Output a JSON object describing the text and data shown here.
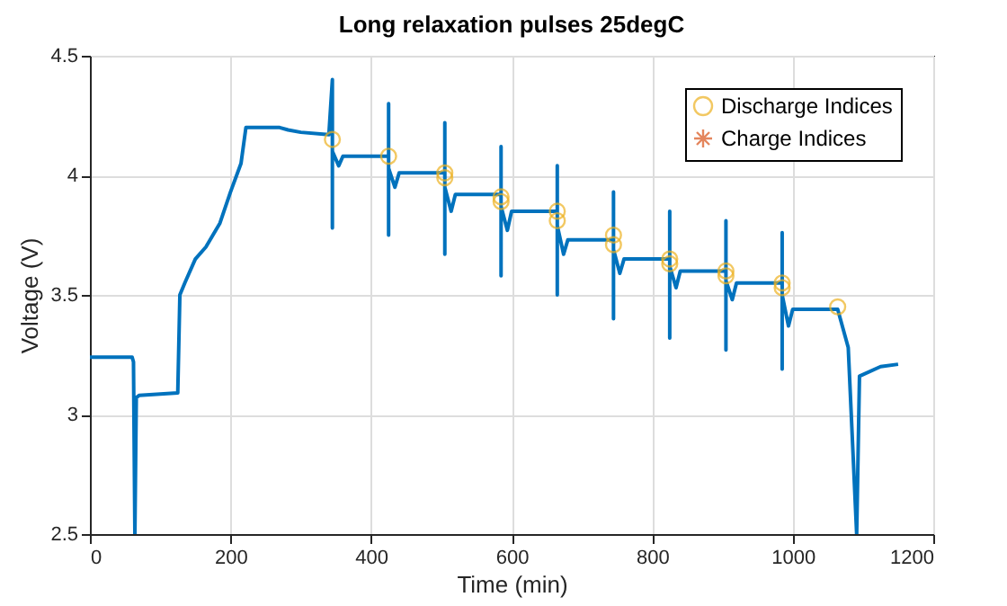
{
  "chart_data": {
    "type": "line",
    "title": "Long relaxation pulses 25degC",
    "xlabel": "Time (min)",
    "ylabel": "Voltage (V)",
    "xlim": [
      0,
      1200
    ],
    "xticks": [
      0,
      200,
      400,
      600,
      800,
      1000,
      1200
    ],
    "ylim": [
      2.5,
      4.5
    ],
    "yticks": [
      2.5,
      3,
      3.5,
      4,
      4.5
    ],
    "grid": true,
    "legend": "top right",
    "series": [
      {
        "color": "#0072bd",
        "marker": "none",
        "x": [
          0,
          60,
          62,
          64,
          66,
          70,
          125,
          128,
          135,
          150,
          165,
          185,
          200,
          215,
          222,
          270,
          282,
          300,
          340,
          345,
          345,
          345,
          354,
          360,
          425,
          425,
          425,
          425,
          434,
          440,
          505,
          505,
          505,
          505,
          514,
          520,
          585,
          585,
          585,
          585,
          594,
          600,
          665,
          665,
          665,
          665,
          674,
          680,
          745,
          745,
          745,
          745,
          754,
          760,
          825,
          825,
          825,
          825,
          834,
          840,
          905,
          905,
          905,
          905,
          914,
          920,
          985,
          985,
          985,
          985,
          994,
          1000,
          1064,
          1079,
          1091,
          1095,
          1125,
          1150
        ],
        "values": [
          3.24,
          3.24,
          3.22,
          2.5,
          3.07,
          3.08,
          3.09,
          3.5,
          3.55,
          3.65,
          3.7,
          3.8,
          3.93,
          4.05,
          4.2,
          4.2,
          4.19,
          4.18,
          4.17,
          4.4,
          3.78,
          4.1,
          4.04,
          4.08,
          4.08,
          4.3,
          3.75,
          4.03,
          3.95,
          4.01,
          4.01,
          4.22,
          3.67,
          3.95,
          3.85,
          3.92,
          3.92,
          4.12,
          3.58,
          3.87,
          3.77,
          3.85,
          3.85,
          4.04,
          3.5,
          3.79,
          3.67,
          3.73,
          3.73,
          3.93,
          3.4,
          3.69,
          3.59,
          3.65,
          3.65,
          3.85,
          3.32,
          3.62,
          3.53,
          3.6,
          3.6,
          3.81,
          3.27,
          3.56,
          3.48,
          3.55,
          3.55,
          3.76,
          3.19,
          3.5,
          3.37,
          3.44,
          3.44,
          3.28,
          2.5,
          3.16,
          3.2,
          3.21
        ]
      },
      {
        "type": "scatter",
        "name": "Discharge Indices",
        "color": "#edb120",
        "marker": "circle",
        "x": [
          345,
          425,
          505,
          505,
          585,
          585,
          665,
          665,
          745,
          745,
          825,
          825,
          905,
          905,
          985,
          985,
          1064
        ],
        "values": [
          4.15,
          4.08,
          4.01,
          3.99,
          3.91,
          3.89,
          3.85,
          3.81,
          3.75,
          3.71,
          3.65,
          3.63,
          3.6,
          3.58,
          3.55,
          3.53,
          3.45
        ]
      },
      {
        "type": "scatter",
        "name": "Charge Indices",
        "color": "#d95319",
        "marker": "star"
      }
    ]
  }
}
